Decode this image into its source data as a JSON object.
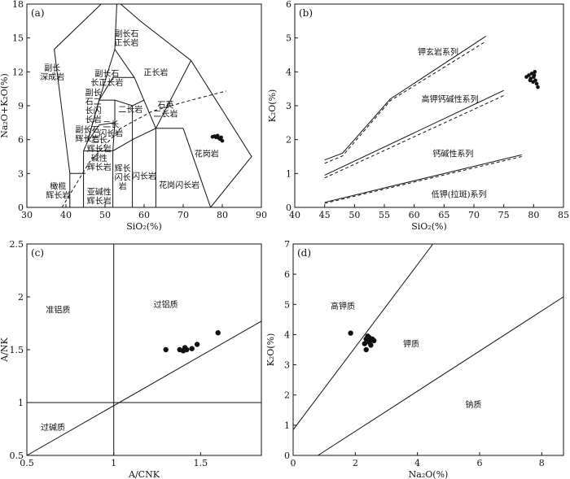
{
  "chart_data": [
    {
      "id": "a",
      "type": "scatter",
      "panel_label": "(a)",
      "xlabel": "SiO₂(%)",
      "ylabel": "Na₂O+K₂O(%)",
      "xlim": [
        30,
        90
      ],
      "ylim": [
        0,
        18
      ],
      "xticks": [
        30,
        40,
        50,
        60,
        70,
        80,
        90
      ],
      "yticks": [
        0,
        3,
        6,
        9,
        12,
        15,
        18
      ],
      "fields": [
        [
          [
            41,
            3
          ],
          [
            37,
            14
          ],
          [
            49,
            18
          ],
          [
            54,
            18
          ],
          [
            59,
            16.5
          ],
          [
            72,
            13
          ],
          [
            87.5,
            4.5
          ],
          [
            77,
            0
          ]
        ],
        [
          [
            41,
            3
          ],
          [
            41,
            0
          ]
        ],
        [
          [
            41,
            3
          ],
          [
            45,
            3
          ]
        ],
        [
          [
            44.5,
            0
          ],
          [
            44.5,
            5
          ]
        ],
        [
          [
            44.5,
            5
          ],
          [
            45.5,
            5.8
          ],
          [
            48.5,
            9.5
          ],
          [
            52.5,
            14
          ],
          [
            57.5,
            11.5
          ],
          [
            63,
            7
          ],
          [
            72,
            13
          ]
        ],
        [
          [
            44.5,
            5
          ],
          [
            52,
            5
          ],
          [
            57,
            6
          ],
          [
            63,
            7
          ],
          [
            70,
            7
          ]
        ],
        [
          [
            48.5,
            9.5
          ],
          [
            52,
            11.5
          ],
          [
            57.5,
            11.5
          ]
        ],
        [
          [
            52.5,
            14
          ],
          [
            53,
            18
          ]
        ],
        [
          [
            45.5,
            5.8
          ],
          [
            48.5,
            9.5
          ],
          [
            52.5,
            9.5
          ],
          [
            57,
            9
          ],
          [
            60,
            9.5
          ]
        ],
        [
          [
            57,
            9
          ],
          [
            57,
            6
          ]
        ],
        [
          [
            52,
            5
          ],
          [
            52,
            0
          ]
        ],
        [
          [
            57,
            6
          ],
          [
            57,
            0
          ]
        ],
        [
          [
            63,
            7
          ],
          [
            63,
            0
          ]
        ],
        [
          [
            70,
            7
          ],
          [
            77,
            0
          ]
        ],
        [
          [
            52,
            5
          ],
          [
            52.5,
            7.5
          ],
          [
            52.5,
            9.5
          ]
        ],
        [
          [
            48.5,
            7.3
          ],
          [
            52.5,
            7.5
          ]
        ],
        [
          [
            45.5,
            5.8
          ],
          [
            48.5,
            7.3
          ]
        ]
      ],
      "alkaline_divide": [
        [
          39,
          0
        ],
        [
          46,
          4
        ],
        [
          54,
          7
        ],
        [
          62,
          8.5
        ],
        [
          70,
          9.3
        ],
        [
          81,
          10.3
        ]
      ],
      "field_labels": [
        {
          "text": [
            "橄榄",
            "辉长岩"
          ],
          "x": 38,
          "y": 1.5
        },
        {
          "text": [
            "副长",
            "深成岩"
          ],
          "x": 36.5,
          "y": 12
        },
        {
          "text": [
            "副长石",
            "正长岩"
          ],
          "x": 55.5,
          "y": 15
        },
        {
          "text": [
            "副长石",
            "长正长岩"
          ],
          "x": 50.5,
          "y": 11.5
        },
        {
          "text": [
            "正长岩"
          ],
          "x": 63,
          "y": 12
        },
        {
          "text": [
            "副长",
            "石二",
            "长闪",
            "长岩"
          ],
          "x": 47,
          "y": 9
        },
        {
          "text": [
            "二长岩"
          ],
          "x": 56.5,
          "y": 8.7
        },
        {
          "text": [
            "石英",
            "二长岩"
          ],
          "x": 65.5,
          "y": 8.7
        },
        {
          "text": [
            "副长石",
            "辉长岩"
          ],
          "x": 45.5,
          "y": 6.5
        },
        {
          "text": [
            "二长",
            "闪长岩"
          ],
          "x": 51.5,
          "y": 7
        },
        {
          "text": [
            "二长",
            "辉长岩"
          ],
          "x": 48.5,
          "y": 5.6
        },
        {
          "text": [
            "碱性",
            "辉长岩"
          ],
          "x": 48.5,
          "y": 4
        },
        {
          "text": [
            "亚碱性",
            "辉长岩"
          ],
          "x": 48.5,
          "y": 1
        },
        {
          "text": [
            "辉长",
            "闪长",
            "岩"
          ],
          "x": 54.5,
          "y": 2.7
        },
        {
          "text": [
            "闪长岩"
          ],
          "x": 60,
          "y": 2.8
        },
        {
          "text": [
            "花岗闪长岩"
          ],
          "x": 69,
          "y": 2
        },
        {
          "text": [
            "花岗岩"
          ],
          "x": 76,
          "y": 4.8
        }
      ],
      "points": {
        "x": [
          77.5,
          78.0,
          78.4,
          78.8,
          79.1,
          79.4,
          79.7,
          80.0
        ],
        "y": [
          6.25,
          6.3,
          6.2,
          6.35,
          6.15,
          6.05,
          6.2,
          5.9
        ]
      }
    },
    {
      "id": "b",
      "type": "scatter",
      "panel_label": "(b)",
      "xlabel": "SiO₂(%)",
      "ylabel": "K₂O(%)",
      "xlim": [
        40,
        85
      ],
      "ylim": [
        0,
        6
      ],
      "xticks": [
        40,
        45,
        50,
        55,
        60,
        65,
        70,
        75,
        80,
        85
      ],
      "yticks": [
        0,
        1,
        2,
        3,
        4,
        5,
        6
      ],
      "solid_lines": [
        [
          [
            45,
            1.4
          ],
          [
            48,
            1.6
          ],
          [
            56,
            3.2
          ],
          [
            72,
            5.05
          ]
        ],
        [
          [
            45,
            0.95
          ],
          [
            75,
            3.45
          ]
        ],
        [
          [
            45,
            0.15
          ],
          [
            78,
            1.55
          ]
        ]
      ],
      "dashed_lines": [
        [
          [
            45,
            1.3
          ],
          [
            48,
            1.52
          ],
          [
            56,
            3.15
          ],
          [
            72,
            4.9
          ]
        ],
        [
          [
            45,
            0.87
          ],
          [
            75,
            3.3
          ]
        ],
        [
          [
            45,
            0.12
          ],
          [
            78,
            1.5
          ]
        ]
      ],
      "field_labels": [
        {
          "text": [
            "钾玄岩系列"
          ],
          "x": 64,
          "y": 4.6
        },
        {
          "text": [
            "高钾钙碱性系列"
          ],
          "x": 66,
          "y": 3.2
        },
        {
          "text": [
            "钙碱性系列"
          ],
          "x": 66.5,
          "y": 1.6
        },
        {
          "text": [
            "低钾(拉斑)系列"
          ],
          "x": 67.5,
          "y": 0.4
        }
      ],
      "points": {
        "x": [
          78.8,
          79.2,
          79.5,
          79.7,
          79.9,
          80.0,
          80.1,
          80.3,
          80.5,
          80.7,
          79.4,
          80.2
        ],
        "y": [
          3.85,
          3.9,
          3.8,
          3.95,
          3.7,
          3.85,
          3.9,
          3.75,
          3.65,
          3.55,
          3.75,
          4.0
        ]
      }
    },
    {
      "id": "c",
      "type": "scatter",
      "panel_label": "(c)",
      "xlabel": "A/CNK",
      "ylabel": "A/NK",
      "xlim": [
        0.5,
        1.85
      ],
      "ylim": [
        0.5,
        2.5
      ],
      "xticks": [
        0.5,
        1.0,
        1.5
      ],
      "yticks": [
        0.5,
        1.0,
        1.5,
        2.0,
        2.5
      ],
      "lines": [
        [
          [
            0.5,
            0.5
          ],
          [
            1.85,
            1.77
          ]
        ],
        [
          [
            1.0,
            0.5
          ],
          [
            1.0,
            2.5
          ]
        ],
        [
          [
            0.5,
            1.0
          ],
          [
            1.85,
            1.0
          ]
        ]
      ],
      "field_labels": [
        {
          "text": [
            "准铝质"
          ],
          "x": 0.68,
          "y": 1.88
        },
        {
          "text": [
            "过铝质"
          ],
          "x": 1.3,
          "y": 1.93
        },
        {
          "text": [
            "过碱质"
          ],
          "x": 0.65,
          "y": 0.77
        }
      ],
      "points": {
        "x": [
          1.3,
          1.38,
          1.4,
          1.41,
          1.42,
          1.45,
          1.48,
          1.6
        ],
        "y": [
          1.5,
          1.5,
          1.49,
          1.52,
          1.5,
          1.51,
          1.55,
          1.66
        ]
      }
    },
    {
      "id": "d",
      "type": "scatter",
      "panel_label": "(d)",
      "xlabel": "Na₂O(%)",
      "ylabel": "K₂O(%)",
      "xlim": [
        0,
        8.7
      ],
      "ylim": [
        0,
        7
      ],
      "xticks": [
        0,
        2,
        4,
        6,
        8
      ],
      "yticks": [
        0,
        1,
        2,
        3,
        4,
        5,
        6,
        7
      ],
      "lines": [
        [
          [
            0,
            0.85
          ],
          [
            4.5,
            7
          ]
        ],
        [
          [
            0.8,
            0
          ],
          [
            8.7,
            5.25
          ]
        ]
      ],
      "field_labels": [
        {
          "text": [
            "高钾质"
          ],
          "x": 1.6,
          "y": 4.95
        },
        {
          "text": [
            "钾质"
          ],
          "x": 3.8,
          "y": 3.7
        },
        {
          "text": [
            "钠质"
          ],
          "x": 5.8,
          "y": 1.7
        }
      ],
      "points": {
        "x": [
          1.85,
          2.3,
          2.35,
          2.4,
          2.45,
          2.5,
          2.55,
          2.35,
          2.45,
          2.6
        ],
        "y": [
          4.05,
          3.7,
          3.85,
          3.95,
          3.75,
          3.65,
          3.85,
          3.5,
          3.9,
          3.8
        ]
      }
    }
  ]
}
